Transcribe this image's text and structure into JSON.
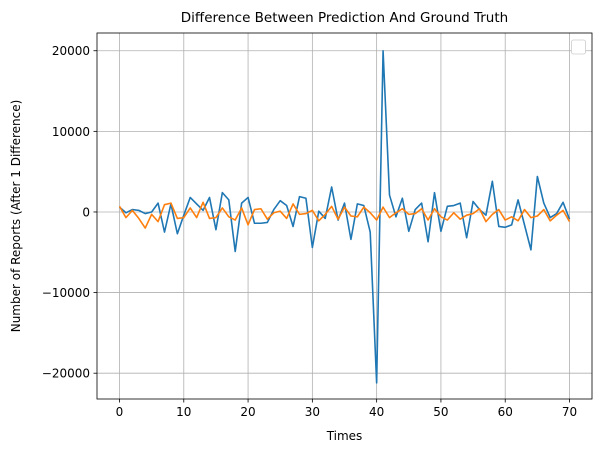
{
  "chart_data": {
    "type": "line",
    "title": "Difference Between Prediction And Ground Truth",
    "xlabel": "Times",
    "ylabel": "Number of Reports (After 1 Difference)",
    "xlim": [
      -3.5,
      73.5
    ],
    "ylim": [
      -23200,
      22200
    ],
    "x_ticks": [
      0,
      10,
      20,
      30,
      40,
      50,
      60,
      70
    ],
    "y_ticks": [
      -20000,
      -10000,
      0,
      10000,
      20000
    ],
    "grid": true,
    "legend": "top-right (empty)",
    "x": [
      0,
      1,
      2,
      3,
      4,
      5,
      6,
      7,
      8,
      9,
      10,
      11,
      12,
      13,
      14,
      15,
      16,
      17,
      18,
      19,
      20,
      21,
      22,
      23,
      24,
      25,
      26,
      27,
      28,
      29,
      30,
      31,
      32,
      33,
      34,
      35,
      36,
      37,
      38,
      39,
      40,
      41,
      42,
      43,
      44,
      45,
      46,
      47,
      48,
      49,
      50,
      51,
      52,
      53,
      54,
      55,
      56,
      57,
      58,
      59,
      60,
      61,
      62,
      63,
      64,
      65,
      66,
      67,
      68,
      69,
      70
    ],
    "series": [
      {
        "color": "#1f77b4",
        "values": [
          600,
          -100,
          300,
          200,
          -200,
          0,
          1100,
          -2500,
          1000,
          -2700,
          -400,
          1800,
          1000,
          200,
          1800,
          -2200,
          2400,
          1500,
          -4900,
          1100,
          1800,
          -1400,
          -1400,
          -1300,
          300,
          1400,
          800,
          -1800,
          1900,
          1700,
          -4400,
          100,
          -800,
          3100,
          -1000,
          1100,
          -3400,
          1000,
          800,
          -2500,
          -21200,
          20000,
          2100,
          -600,
          1700,
          -2400,
          300,
          1100,
          -3700,
          2400,
          -2400,
          700,
          800,
          1100,
          -3200,
          1300,
          300,
          -400,
          3800,
          -1800,
          -1900,
          -1600,
          1500,
          -1600,
          -4700,
          4400,
          1100,
          -700,
          -200,
          1200,
          -900
        ]
      },
      {
        "color": "#ff7f0e",
        "values": [
          700,
          -700,
          200,
          -800,
          -2000,
          -300,
          -1200,
          900,
          1100,
          -800,
          -700,
          500,
          -700,
          1200,
          -800,
          -700,
          500,
          -600,
          -1000,
          500,
          -1600,
          300,
          400,
          -900,
          -100,
          100,
          -800,
          1000,
          -300,
          -200,
          200,
          -1100,
          -300,
          700,
          -900,
          600,
          -500,
          -600,
          600,
          -100,
          -1000,
          600,
          -700,
          -100,
          400,
          -300,
          -200,
          400,
          -1000,
          400,
          -600,
          -1000,
          -100,
          -900,
          -400,
          -200,
          400,
          -1200,
          -300,
          300,
          -1000,
          -600,
          -1100,
          300,
          -700,
          -500,
          300,
          -1100,
          -400,
          200,
          -1200
        ]
      }
    ]
  }
}
